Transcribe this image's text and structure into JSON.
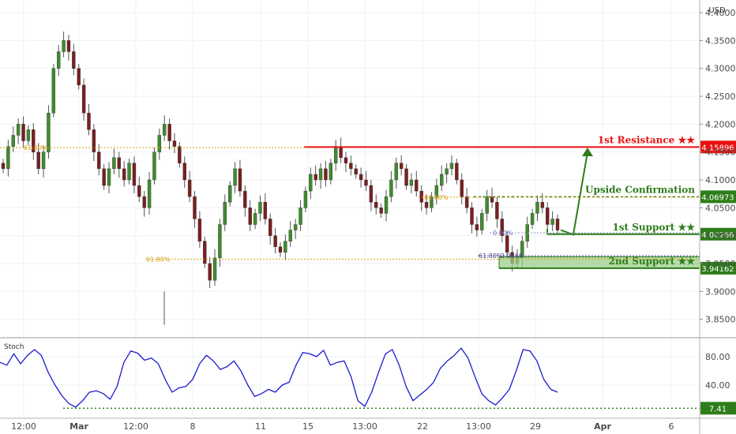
{
  "chart_data": [
    {
      "type": "candlestick",
      "currency": "USD",
      "x_ticks": [
        "12:00",
        "Mar",
        "12:00",
        "8",
        "11",
        "15",
        "13:00",
        "22",
        "13:00",
        "29",
        "Apr",
        "6"
      ],
      "y_ticks": [
        "4.40000",
        "4.35000",
        "4.30000",
        "4.25000",
        "4.20000",
        "4.15000",
        "4.10000",
        "4.05000",
        "4.00000",
        "3.95000",
        "3.90000",
        "3.85000"
      ],
      "ylim": [
        3.82,
        4.4
      ],
      "levels": [
        {
          "label": "1st Resistance ★★",
          "value": 4.15896,
          "value_label": "4.15896",
          "color": "#e81010"
        },
        {
          "label": "Upside Confirmation",
          "value": 4.06973,
          "value_label": "4.06973",
          "color": "#2e7d1a"
        },
        {
          "label": "1st Support ★★",
          "value": 4.00266,
          "value_label": "4.00266",
          "color": "#2e7d1a"
        },
        {
          "label": "2nd Support ★★",
          "value": 3.94162,
          "value_label": "3.94162",
          "color": "#2e7d1a"
        }
      ],
      "fib_labels": [
        "61.80%",
        "61.80%",
        "61.80%",
        "0.00%",
        "61.80%",
        "3.9668"
      ],
      "ohlc_close": [
        4.12,
        4.16,
        4.18,
        4.2,
        4.17,
        4.19,
        4.15,
        4.12,
        4.15,
        4.22,
        4.3,
        4.33,
        4.35,
        4.33,
        4.3,
        4.27,
        4.22,
        4.19,
        4.15,
        4.12,
        4.09,
        4.12,
        4.14,
        4.12,
        4.1,
        4.13,
        4.09,
        4.07,
        4.05,
        4.1,
        4.15,
        4.18,
        4.2,
        4.17,
        4.16,
        4.13,
        4.1,
        4.07,
        4.03,
        3.99,
        3.95,
        3.92,
        3.96,
        4.02,
        4.06,
        4.09,
        4.12,
        4.08,
        4.05,
        4.02,
        4.04,
        4.06,
        4.03,
        4.0,
        3.98,
        3.97,
        3.99,
        4.01,
        4.02,
        4.05,
        4.08,
        4.11,
        4.1,
        4.12,
        4.1,
        4.13,
        4.16,
        4.14,
        4.13,
        4.12,
        4.11,
        4.1,
        4.09,
        4.06,
        4.05,
        4.04,
        4.07,
        4.1,
        4.13,
        4.12,
        4.09,
        4.1,
        4.08,
        4.06,
        4.05,
        4.07,
        4.09,
        4.11,
        4.12,
        4.13,
        4.1,
        4.07,
        4.05,
        4.02,
        4.01,
        4.04,
        4.07,
        4.06,
        4.03,
        4.0,
        3.97,
        3.95,
        3.96,
        3.99,
        4.02,
        4.04,
        4.06,
        4.05,
        4.02,
        4.03,
        4.01
      ],
      "stoch": {
        "label": "Stoch",
        "y_ticks": [
          "80.00",
          "40.00"
        ],
        "level_value_label": "7.41",
        "values": [
          72,
          68,
          84,
          70,
          82,
          90,
          82,
          58,
          40,
          25,
          14,
          9,
          18,
          30,
          32,
          28,
          20,
          38,
          72,
          88,
          85,
          75,
          78,
          70,
          48,
          30,
          36,
          38,
          48,
          70,
          82,
          74,
          62,
          66,
          74,
          60,
          40,
          24,
          28,
          34,
          30,
          40,
          44,
          68,
          86,
          84,
          80,
          89,
          68,
          72,
          74,
          52,
          18,
          10,
          30,
          58,
          84,
          90,
          68,
          38,
          18,
          26,
          34,
          44,
          64,
          74,
          82,
          92,
          78,
          52,
          28,
          18,
          12,
          22,
          34,
          60,
          90,
          88,
          74,
          48,
          34,
          30
        ]
      }
    }
  ]
}
